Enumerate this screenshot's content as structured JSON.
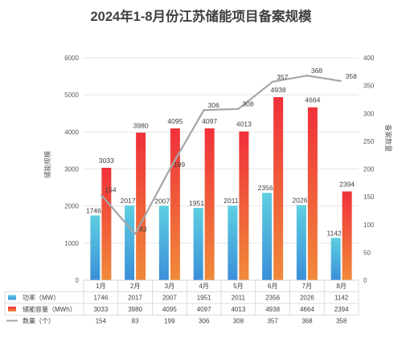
{
  "chart_data": {
    "type": "bar",
    "title": "2024年1-8月份江苏储能项目备案规模",
    "categories": [
      "1月",
      "2月",
      "3月",
      "4月",
      "5月",
      "6月",
      "7月",
      "8月"
    ],
    "ylabel_left": "储能规模",
    "ylabel_right": "备案数量",
    "ylim_left": [
      0,
      6000
    ],
    "yticks_left": [
      0,
      1000,
      2000,
      3000,
      4000,
      5000,
      6000
    ],
    "ylim_right": [
      0,
      400
    ],
    "yticks_right": [
      0,
      50,
      100,
      150,
      200,
      250,
      300,
      350,
      400
    ],
    "grid": true,
    "series": [
      {
        "name": "功率（MW）",
        "type": "bar",
        "axis": "left",
        "color": "#4ec3d8",
        "values": [
          1746,
          2017,
          2007,
          1951,
          2011,
          2356,
          2026,
          1142
        ]
      },
      {
        "name": "储能容量（MWh）",
        "type": "bar",
        "axis": "left",
        "color": "#ef4a3a",
        "values": [
          3033,
          3980,
          4095,
          4097,
          4013,
          4938,
          4664,
          2394
        ]
      },
      {
        "name": "数量（个）",
        "type": "line",
        "axis": "right",
        "color": "#a6a6a6",
        "values": [
          154,
          83,
          199,
          306,
          308,
          357,
          368,
          358
        ]
      }
    ]
  },
  "colors": {
    "power_top": "#5ecfe0",
    "power_bottom": "#3b8fd9",
    "capacity_top": "#f0303a",
    "capacity_bottom": "#f08a3a",
    "count_line": "#a6a6a6"
  }
}
